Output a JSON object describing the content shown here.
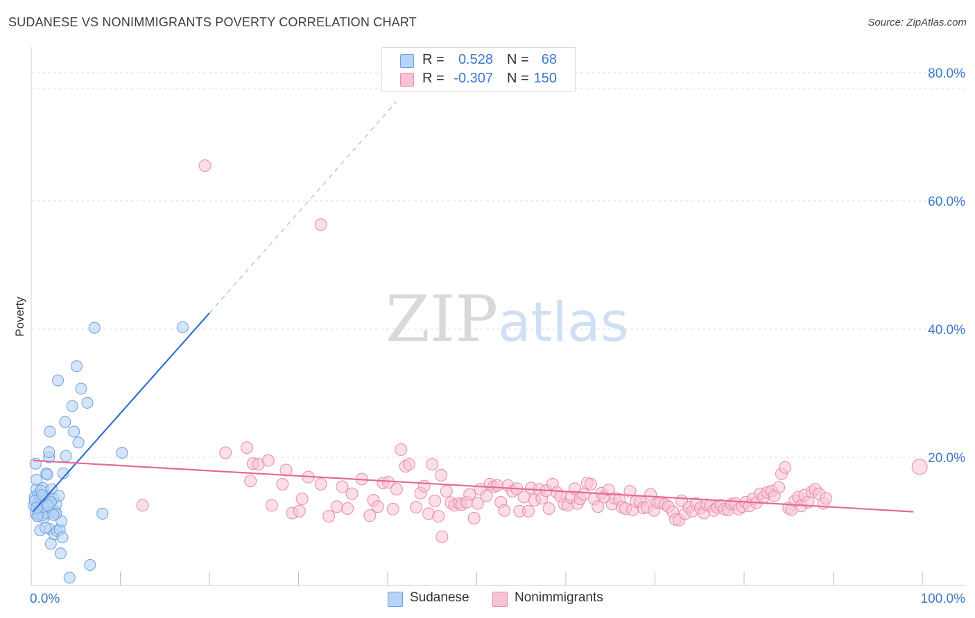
{
  "header": {
    "title": "SUDANESE VS NONIMMIGRANTS POVERTY CORRELATION CHART",
    "source": "Source: ZipAtlas.com"
  },
  "watermark": {
    "part1": "ZIP",
    "part2": "atlas"
  },
  "legend": {
    "r_label": "R =",
    "n_label": "N =",
    "rows": [
      {
        "r": "0.528",
        "n": "68"
      },
      {
        "r": "-0.307",
        "n": "150"
      }
    ]
  },
  "colors": {
    "sudanese_fill": "#b8d3f5",
    "sudanese_stroke": "#6f9fe0",
    "sudanese_line": "#2f6fce",
    "nonimm_fill": "#f7c3d4",
    "nonimm_stroke": "#e98ba9",
    "nonimm_line": "#e46a95",
    "tick_text": "#3b78c9",
    "grid": "#dddddd"
  },
  "chart_data": {
    "type": "scatter",
    "title": "SUDANESE VS NONIMMIGRANTS POVERTY CORRELATION CHART",
    "xlabel": "",
    "ylabel": "Poverty",
    "xlim": [
      0,
      100
    ],
    "ylim": [
      0,
      84
    ],
    "x_tick_labels": [
      "0.0%",
      "100.0%"
    ],
    "y_ticks": [
      20,
      40,
      60,
      80
    ],
    "y_tick_labels": [
      "20.0%",
      "40.0%",
      "60.0%",
      "80.0%"
    ],
    "grid": "horizontal dashed",
    "legend_position": "top-center",
    "series": [
      {
        "name": "Sudanese",
        "r": 0.528,
        "n": 68,
        "trend": {
          "x": [
            0.2,
            20
          ],
          "y": [
            11.5,
            42.5
          ],
          "dashed_to": {
            "x": 41,
            "y": 75.5
          }
        },
        "points": [
          [
            0.3,
            12.5
          ],
          [
            0.4,
            13.8
          ],
          [
            0.5,
            11.2
          ],
          [
            0.6,
            15.0
          ],
          [
            0.7,
            12.8
          ],
          [
            0.8,
            14.2
          ],
          [
            0.9,
            11.8
          ],
          [
            1.0,
            13.5
          ],
          [
            0.5,
            19.0
          ],
          [
            0.6,
            16.5
          ],
          [
            0.8,
            11.0
          ],
          [
            1.0,
            8.6
          ],
          [
            1.1,
            12.4
          ],
          [
            1.2,
            13.0
          ],
          [
            1.3,
            15.2
          ],
          [
            1.4,
            10.5
          ],
          [
            1.5,
            12.0
          ],
          [
            1.6,
            14.0
          ],
          [
            1.7,
            17.5
          ],
          [
            1.8,
            11.3
          ],
          [
            1.9,
            13.9
          ],
          [
            2.0,
            20.0
          ],
          [
            2.1,
            8.8
          ],
          [
            2.2,
            6.5
          ],
          [
            2.0,
            20.8
          ],
          [
            2.1,
            24.0
          ],
          [
            2.3,
            15.0
          ],
          [
            2.4,
            11.5
          ],
          [
            2.5,
            13.5
          ],
          [
            2.6,
            8.0
          ],
          [
            2.7,
            11.6
          ],
          [
            2.8,
            12.7
          ],
          [
            2.9,
            8.5
          ],
          [
            3.0,
            32.0
          ],
          [
            3.1,
            14.0
          ],
          [
            3.2,
            8.7
          ],
          [
            3.3,
            5.0
          ],
          [
            3.4,
            10.0
          ],
          [
            3.5,
            7.5
          ],
          [
            3.6,
            17.5
          ],
          [
            3.8,
            25.5
          ],
          [
            3.9,
            20.2
          ],
          [
            4.3,
            1.2
          ],
          [
            4.6,
            28.0
          ],
          [
            4.8,
            24.0
          ],
          [
            5.1,
            34.2
          ],
          [
            5.3,
            22.3
          ],
          [
            5.6,
            30.7
          ],
          [
            6.3,
            28.5
          ],
          [
            6.6,
            3.2
          ],
          [
            7.1,
            40.2
          ],
          [
            8.0,
            11.2
          ],
          [
            10.2,
            20.7
          ],
          [
            17.0,
            40.3
          ],
          [
            0.9,
            11.4
          ],
          [
            1.3,
            11.0
          ],
          [
            1.1,
            14.8
          ],
          [
            1.6,
            9.0
          ],
          [
            0.4,
            13.2
          ],
          [
            2.2,
            13.0
          ],
          [
            1.8,
            17.3
          ],
          [
            0.7,
            10.8
          ],
          [
            2.8,
            11.2
          ],
          [
            1.4,
            12.3
          ],
          [
            0.6,
            12.1
          ],
          [
            2.5,
            11.0
          ],
          [
            1.2,
            14.1
          ],
          [
            1.9,
            12.5
          ]
        ]
      },
      {
        "name": "Nonimmigrants",
        "r": -0.307,
        "n": 150,
        "trend": {
          "x": [
            0.2,
            99
          ],
          "y": [
            19.5,
            11.5
          ]
        },
        "points": [
          [
            19.5,
            65.5
          ],
          [
            32.5,
            56.3
          ],
          [
            12.5,
            12.5
          ],
          [
            21.8,
            20.7
          ],
          [
            24.2,
            21.5
          ],
          [
            24.6,
            16.3
          ],
          [
            24.9,
            19.0
          ],
          [
            25.5,
            18.9
          ],
          [
            26.6,
            19.5
          ],
          [
            27.0,
            12.5
          ],
          [
            28.2,
            15.8
          ],
          [
            28.6,
            18.0
          ],
          [
            29.3,
            11.3
          ],
          [
            30.1,
            11.6
          ],
          [
            30.4,
            13.5
          ],
          [
            31.1,
            16.9
          ],
          [
            32.5,
            15.8
          ],
          [
            33.4,
            10.8
          ],
          [
            34.3,
            12.3
          ],
          [
            34.9,
            15.4
          ],
          [
            35.5,
            12.0
          ],
          [
            36.0,
            14.3
          ],
          [
            37.1,
            16.6
          ],
          [
            38.0,
            10.9
          ],
          [
            38.4,
            13.3
          ],
          [
            38.9,
            12.3
          ],
          [
            39.5,
            16.0
          ],
          [
            40.1,
            16.1
          ],
          [
            40.6,
            11.9
          ],
          [
            41.0,
            15.0
          ],
          [
            41.5,
            21.2
          ],
          [
            42.0,
            18.6
          ],
          [
            42.4,
            18.9
          ],
          [
            43.2,
            12.2
          ],
          [
            43.7,
            14.4
          ],
          [
            44.1,
            15.5
          ],
          [
            44.6,
            11.2
          ],
          [
            45.0,
            18.9
          ],
          [
            45.3,
            13.2
          ],
          [
            45.7,
            10.8
          ],
          [
            46.0,
            17.2
          ],
          [
            46.1,
            7.6
          ],
          [
            46.6,
            14.7
          ],
          [
            47.1,
            12.9
          ],
          [
            47.5,
            12.5
          ],
          [
            48.0,
            12.8
          ],
          [
            48.3,
            12.6
          ],
          [
            48.9,
            13.0
          ],
          [
            49.2,
            14.2
          ],
          [
            49.7,
            10.5
          ],
          [
            50.1,
            12.8
          ],
          [
            50.4,
            15.0
          ],
          [
            51.1,
            14.0
          ],
          [
            51.5,
            15.8
          ],
          [
            51.9,
            15.4
          ],
          [
            52.3,
            15.6
          ],
          [
            52.7,
            13.0
          ],
          [
            53.1,
            11.7
          ],
          [
            53.5,
            15.6
          ],
          [
            54.0,
            14.7
          ],
          [
            54.5,
            15.1
          ],
          [
            54.8,
            11.6
          ],
          [
            55.3,
            13.8
          ],
          [
            55.8,
            11.6
          ],
          [
            56.1,
            15.2
          ],
          [
            56.5,
            13.3
          ],
          [
            57.0,
            15.0
          ],
          [
            57.3,
            13.6
          ],
          [
            57.8,
            14.8
          ],
          [
            58.1,
            12.0
          ],
          [
            58.5,
            15.8
          ],
          [
            59.0,
            14.5
          ],
          [
            59.4,
            13.9
          ],
          [
            59.8,
            12.7
          ],
          [
            60.2,
            12.5
          ],
          [
            60.6,
            13.7
          ],
          [
            61.0,
            15.1
          ],
          [
            61.3,
            12.8
          ],
          [
            61.6,
            13.5
          ],
          [
            62.0,
            14.2
          ],
          [
            62.4,
            16.0
          ],
          [
            62.8,
            15.8
          ],
          [
            63.2,
            13.5
          ],
          [
            63.6,
            12.3
          ],
          [
            64.0,
            14.4
          ],
          [
            64.3,
            13.8
          ],
          [
            64.8,
            14.9
          ],
          [
            65.2,
            12.7
          ],
          [
            65.5,
            13.6
          ],
          [
            66.0,
            13.4
          ],
          [
            66.3,
            12.2
          ],
          [
            66.7,
            12.0
          ],
          [
            67.2,
            14.7
          ],
          [
            67.5,
            11.8
          ],
          [
            67.9,
            13.1
          ],
          [
            68.3,
            13.1
          ],
          [
            68.7,
            12.1
          ],
          [
            69.1,
            12.2
          ],
          [
            69.5,
            14.2
          ],
          [
            69.9,
            11.7
          ],
          [
            70.3,
            12.9
          ],
          [
            70.6,
            12.9
          ],
          [
            71.1,
            12.7
          ],
          [
            71.5,
            12.3
          ],
          [
            72.0,
            11.5
          ],
          [
            72.3,
            10.3
          ],
          [
            72.7,
            10.2
          ],
          [
            73.0,
            13.2
          ],
          [
            73.4,
            11.2
          ],
          [
            73.8,
            12.2
          ],
          [
            74.2,
            11.6
          ],
          [
            74.6,
            12.8
          ],
          [
            75.1,
            12.1
          ],
          [
            75.5,
            11.3
          ],
          [
            75.8,
            12.6
          ],
          [
            76.2,
            12.5
          ],
          [
            76.6,
            11.7
          ],
          [
            77.0,
            12.2
          ],
          [
            77.4,
            12.5
          ],
          [
            77.8,
            11.9
          ],
          [
            78.2,
            11.8
          ],
          [
            78.6,
            12.7
          ],
          [
            79.0,
            12.8
          ],
          [
            79.4,
            11.9
          ],
          [
            79.8,
            12.3
          ],
          [
            80.2,
            13.0
          ],
          [
            80.6,
            12.4
          ],
          [
            81.0,
            13.5
          ],
          [
            81.4,
            12.9
          ],
          [
            81.8,
            14.3
          ],
          [
            82.2,
            13.8
          ],
          [
            82.6,
            14.5
          ],
          [
            83.1,
            14.7
          ],
          [
            83.4,
            14.0
          ],
          [
            83.9,
            15.3
          ],
          [
            84.2,
            17.4
          ],
          [
            84.6,
            18.4
          ],
          [
            85.0,
            12.1
          ],
          [
            85.3,
            11.8
          ],
          [
            85.7,
            13.2
          ],
          [
            86.1,
            13.8
          ],
          [
            86.4,
            12.4
          ],
          [
            86.8,
            14.1
          ],
          [
            87.2,
            13.0
          ],
          [
            87.6,
            14.6
          ],
          [
            88.0,
            15.0
          ],
          [
            88.4,
            14.3
          ],
          [
            88.9,
            12.8
          ],
          [
            89.2,
            13.6
          ],
          [
            99.7,
            18.5
          ]
        ]
      }
    ]
  },
  "bottom_legend": [
    {
      "label": "Sudanese"
    },
    {
      "label": "Nonimmigrants"
    }
  ]
}
